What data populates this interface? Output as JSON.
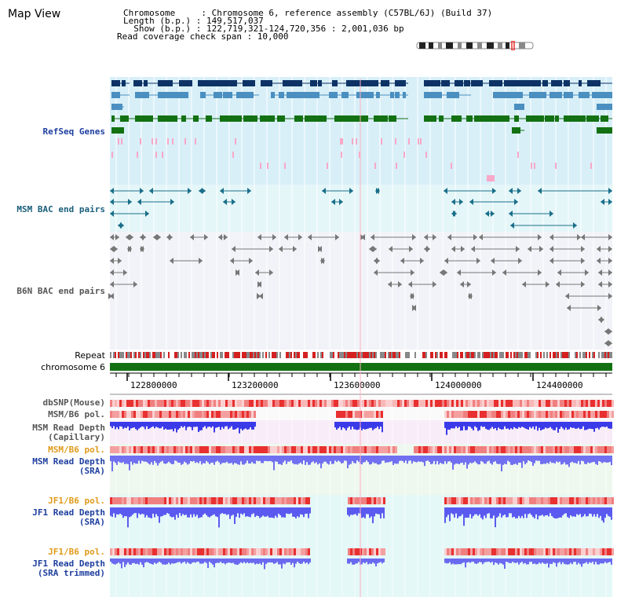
{
  "app_title": "Map View",
  "header": {
    "chromosome_line": "Chromosome     : Chromosome 6, reference assembly (C57BL/6J) (Build 37)",
    "length_line": "Length (b.p.) : 149,517,037",
    "show_line": "  Show (b.p.) : 122,719,321-124,720,356 : 2,001,036 bp",
    "coverage_line": "Read coverage check span : 10,000"
  },
  "tracks": {
    "refseq": "RefSeq Genes",
    "msm_bac": "MSM BAC end pairs",
    "b6n_bac": "B6N BAC end pairs",
    "repeat": "Repeat",
    "chromosome": "chromosome 6",
    "dbsnp": "dbSNP(Mouse)",
    "msm_b6_pol_1": "MSM/B6 pol.",
    "msm_depth_cap_1": "MSM Read Depth",
    "msm_depth_cap_2": "(Capillary)",
    "msm_b6_pol_2": "MSM/B6 pol.",
    "msm_depth_sra_1": "MSM Read Depth",
    "msm_depth_sra_2": "(SRA)",
    "jf1_b6_pol_1": "JF1/B6 pol.",
    "jf1_depth_sra_1": "JF1 Read Depth",
    "jf1_depth_sra_2": "(SRA)",
    "jf1_b6_pol_2": "JF1/B6 pol.",
    "jf1_depth_trim_1": "JF1 Read Depth",
    "jf1_depth_trim_2": "(SRA trimmed)"
  },
  "axis": {
    "ticks": [
      "122800000",
      "123200000",
      "123600000",
      "124000000",
      "124400000"
    ]
  },
  "colors": {
    "refseq_bg": "#d8eff8",
    "msm_bac_bg": "#e4f6f8",
    "b6n_bac_bg": "#f2f3f8",
    "gene_dark": "#0d3366",
    "gene_mid": "#4a8fc0",
    "gene_green": "#137113",
    "chromosome_bar": "#137113",
    "label_blue": "#1f3f9f",
    "label_orange": "#e09a1a",
    "label_gray": "#555555"
  }
}
